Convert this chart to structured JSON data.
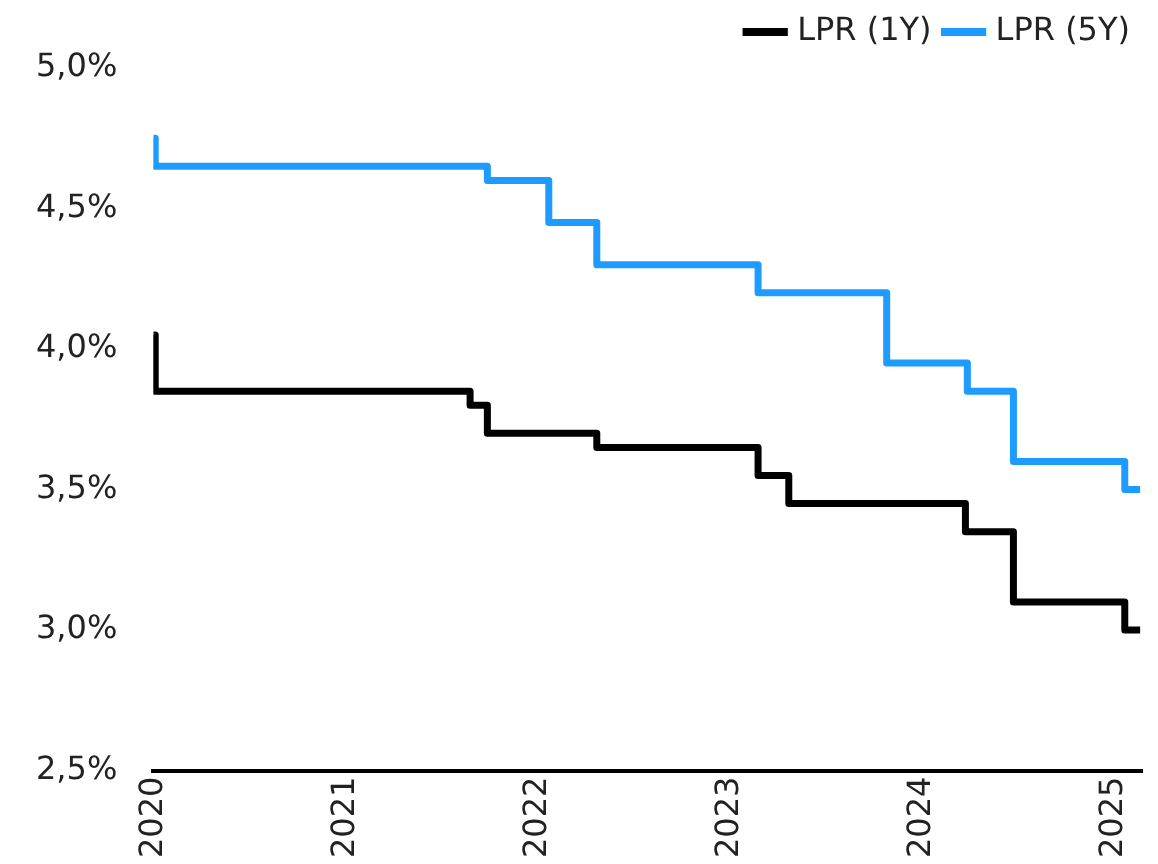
{
  "chart_data": {
    "type": "step",
    "xlim": [
      2020,
      2025.15
    ],
    "xticks": [
      2020,
      2021,
      2022,
      2023,
      2024,
      2025
    ],
    "ylim": [
      2.5,
      5.0
    ],
    "yticks": [
      {
        "value": 2.5,
        "label": "2,5%"
      },
      {
        "value": 3.0,
        "label": "3,0%"
      },
      {
        "value": 3.5,
        "label": "3,5%"
      },
      {
        "value": 4.0,
        "label": "4,0%"
      },
      {
        "value": 4.5,
        "label": "4,5%"
      },
      {
        "value": 5.0,
        "label": "5,0%"
      }
    ],
    "grid": false,
    "legend": "top right",
    "line_style": "solid",
    "marker": "none",
    "series": [
      {
        "name": "LPR (1Y)",
        "color": "#000000",
        "x": [
          2020,
          2020.01,
          2021.65,
          2021.74,
          2022.31,
          2023.15,
          2023.31,
          2024.23,
          2024.48,
          2025.06,
          2025.14
        ],
        "values": [
          4.05,
          3.85,
          3.8,
          3.7,
          3.65,
          3.55,
          3.45,
          3.35,
          3.1,
          3.0,
          3.0
        ]
      },
      {
        "name": "LPR (5Y)",
        "color": "#1e9bff",
        "x": [
          2020,
          2020.01,
          2021.74,
          2022.06,
          2022.31,
          2023.15,
          2023.82,
          2024.24,
          2024.48,
          2025.06,
          2025.14
        ],
        "values": [
          4.75,
          4.65,
          4.6,
          4.45,
          4.3,
          4.2,
          3.95,
          3.85,
          3.6,
          3.5,
          3.5
        ]
      }
    ]
  }
}
